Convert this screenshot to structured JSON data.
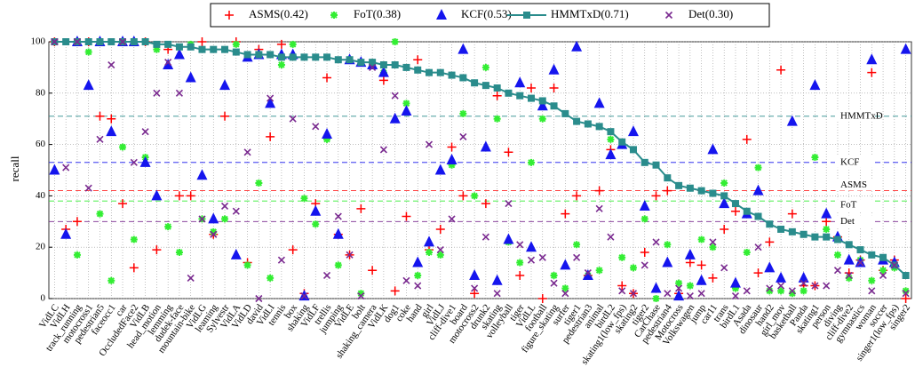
{
  "chart_data": {
    "type": "scatter",
    "y_label": "recall",
    "categories": [
      "VidLC",
      "VidLH",
      "track_running",
      "motocross1",
      "pedestrian5",
      "faceocc1",
      "car",
      "OccludedFace2",
      "VidLB",
      "head_motion",
      "lemming",
      "dudek-face",
      "mountain-bike",
      "VidLG",
      "leaming",
      "Sylvestr",
      "VidLA",
      "VidLD",
      "david",
      "VidLI",
      "tennis",
      "box",
      "shaking",
      "VidLF",
      "trellis",
      "jumping",
      "VidLE",
      "bolt",
      "shaking_camera",
      "VidLK",
      "dog1",
      "coke",
      "hand",
      "girl",
      "VidLJ",
      "cliff-dive1",
      "board",
      "motocross2",
      "drunk2",
      "skating",
      "volleyball",
      "tiger",
      "VidLL",
      "football",
      "figure_skating",
      "surfer",
      "tiger1",
      "pedestrian3",
      "animal",
      "birdL2",
      "skating1(low_fps)",
      "skating2",
      "tiger2",
      "CarChase",
      "pedestrian4",
      "Motocross",
      "Volkswagen",
      "jump",
      "car11",
      "trans",
      "birdL1",
      "Asada",
      "dinosaur",
      "hand2",
      "girl_mov",
      "basketball",
      "Panda",
      "skating1",
      "person",
      "diving",
      "cliff-dive2",
      "gymnastics",
      "woman",
      "soccer",
      "singer1(low_fps)",
      "singer2"
    ],
    "series": [
      {
        "name": "ASMS(0.42)",
        "label": "ASMS",
        "mean": 42,
        "marker": "plus",
        "color": "#ff0000",
        "values": [
          100,
          27,
          30,
          100,
          71,
          70,
          37,
          12,
          100,
          19,
          97,
          40,
          40,
          100,
          25,
          71,
          100,
          14,
          97,
          63,
          99,
          19,
          2,
          37,
          86,
          25,
          17,
          35,
          11,
          85,
          3,
          32,
          93,
          19,
          27,
          59,
          40,
          2,
          37,
          79,
          57,
          9,
          82,
          0,
          82,
          33,
          40,
          9,
          42,
          58,
          5,
          2,
          18,
          40,
          42,
          2,
          14,
          13,
          8,
          27,
          34,
          62,
          10,
          22,
          89,
          33,
          5,
          5,
          30,
          24,
          10,
          15,
          88,
          11,
          15,
          0
        ]
      },
      {
        "name": "FoT(0.38)",
        "label": "FoT",
        "mean": 38,
        "marker": "star",
        "color": "#33ee33",
        "values": [
          100,
          100,
          17,
          96,
          33,
          7,
          59,
          23,
          55,
          97,
          28,
          18,
          99,
          31,
          26,
          31,
          99,
          13,
          45,
          8,
          91,
          99,
          39,
          29,
          62,
          13,
          93,
          2,
          92,
          88,
          100,
          76,
          9,
          18,
          17,
          52,
          72,
          40,
          90,
          70,
          22,
          14,
          53,
          70,
          9,
          4,
          21,
          9,
          11,
          62,
          16,
          12,
          31,
          0,
          21,
          6,
          5,
          23,
          20,
          45,
          4,
          18,
          51,
          3,
          3,
          2,
          3,
          55,
          27,
          17,
          8,
          15,
          7,
          11,
          12,
          3
        ]
      },
      {
        "name": "KCF(0.53)",
        "label": "KCF",
        "mean": 53,
        "marker": "triangle",
        "color": "#1515ee",
        "values": [
          50,
          25,
          100,
          83,
          100,
          65,
          100,
          100,
          53,
          40,
          91,
          95,
          86,
          48,
          31,
          83,
          17,
          94,
          95,
          76,
          95,
          95,
          1,
          34,
          64,
          25,
          93,
          92,
          91,
          88,
          70,
          73,
          14,
          22,
          50,
          54,
          97,
          9,
          59,
          7,
          23,
          84,
          20,
          75,
          89,
          13,
          98,
          9,
          76,
          56,
          60,
          65,
          36,
          4,
          14,
          1,
          17,
          7,
          58,
          37,
          6,
          33,
          42,
          12,
          8,
          69,
          8,
          83,
          33,
          24,
          15,
          14,
          93,
          15,
          14,
          97
        ]
      },
      {
        "name": "HMMTxD(0.71)",
        "label": "HMMTxD",
        "mean": 71,
        "marker": "square-line",
        "color": "#2a8c8c",
        "values": [
          100,
          100,
          100,
          100,
          100,
          100,
          100,
          100,
          100,
          99,
          99,
          98,
          98,
          97,
          97,
          97,
          96,
          95,
          95,
          95,
          94,
          94,
          94,
          94,
          94,
          93,
          93,
          92,
          92,
          91,
          91,
          90,
          89,
          88,
          88,
          87,
          86,
          84,
          83,
          82,
          80,
          79,
          78,
          77,
          75,
          72,
          69,
          68,
          67,
          65,
          61,
          58,
          53,
          52,
          47,
          44,
          43,
          42,
          41,
          40,
          37,
          34,
          32,
          29,
          27,
          26,
          25,
          24,
          24,
          23,
          21,
          19,
          17,
          16,
          13,
          9
        ]
      },
      {
        "name": "Det(0.30)",
        "label": "Det",
        "mean": 30,
        "marker": "cross",
        "color": "#7a2a90",
        "values": [
          100,
          51,
          100,
          43,
          62,
          91,
          100,
          53,
          65,
          80,
          92,
          80,
          8,
          31,
          25,
          36,
          34,
          57,
          0,
          78,
          15,
          70,
          1,
          67,
          9,
          32,
          17,
          1,
          90,
          58,
          79,
          7,
          5,
          60,
          19,
          31,
          63,
          4,
          24,
          2,
          37,
          21,
          15,
          16,
          6,
          2,
          16,
          10,
          35,
          24,
          3,
          2,
          13,
          22,
          2,
          4,
          1,
          2,
          22,
          12,
          1,
          3,
          20,
          4,
          5,
          3,
          6,
          5,
          5,
          11,
          9,
          14,
          3,
          9,
          13,
          2
        ]
      }
    ],
    "ylim": [
      0,
      100
    ],
    "yticks": [
      0,
      20,
      40,
      60,
      80,
      100
    ],
    "grid": true,
    "legend": "top"
  }
}
